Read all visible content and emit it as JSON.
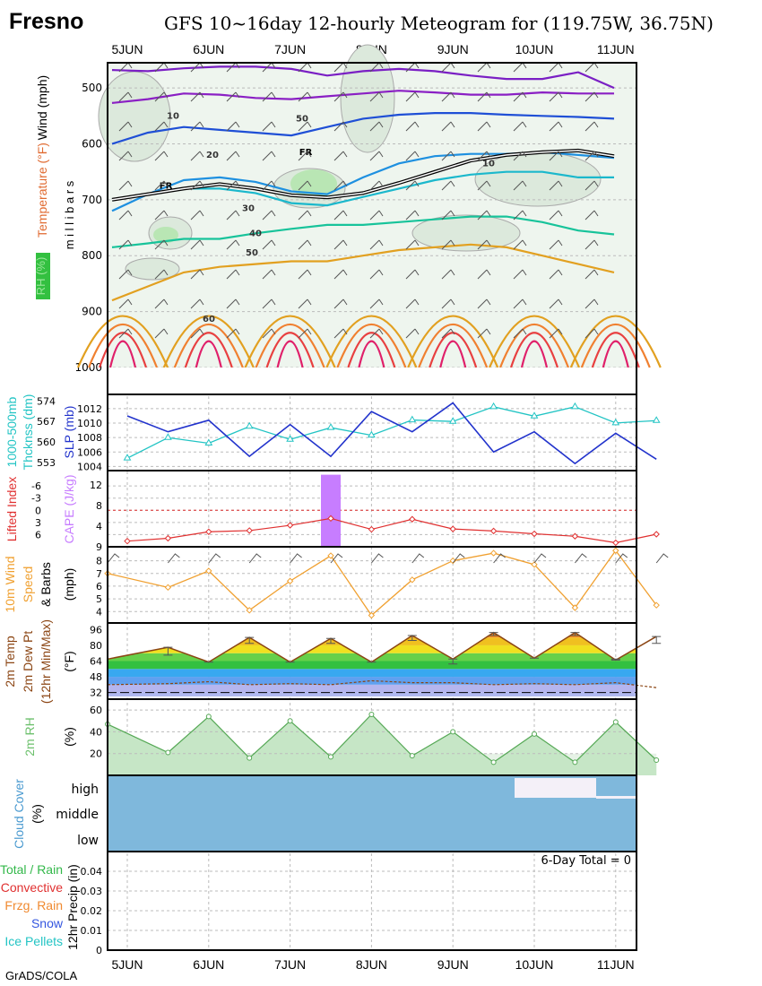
{
  "header": {
    "city": "Fresno",
    "title": "GFS 10~16day 12-hourly Meteogram for (119.75W, 36.75N)"
  },
  "footer": {
    "credit": "GrADS/COLA"
  },
  "dates": [
    "5JUN",
    "6JUN",
    "7JUN",
    "8JUN",
    "9JUN",
    "10JUN",
    "11JUN"
  ],
  "chart_data": [
    {
      "type": "heatmap",
      "panel": "upper-air",
      "ylabel": "Wind (mph)  Temperature (°F)  RH (%)  millibars",
      "y_ticks": [
        500,
        600,
        700,
        800,
        900,
        1000
      ],
      "ylim": [
        455,
        1000
      ],
      "rh_label": "RH (%)",
      "isotherm_labels": [
        {
          "label": "10",
          "x": 1.7,
          "p": 555
        },
        {
          "label": "20",
          "x": 2.8,
          "p": 625
        },
        {
          "label": "FR",
          "x": 1.5,
          "p": 680
        },
        {
          "label": "FR",
          "x": 5.4,
          "p": 620
        },
        {
          "label": "30",
          "x": 3.8,
          "p": 720
        },
        {
          "label": "40",
          "x": 4.0,
          "p": 765
        },
        {
          "label": "60",
          "x": 2.7,
          "p": 918
        },
        {
          "label": "50",
          "x": 5.3,
          "p": 560
        },
        {
          "label": "10",
          "x": 10.5,
          "p": 640
        },
        {
          "label": "50",
          "x": 3.9,
          "p": 800
        }
      ],
      "isotherms": [
        {
          "color": "#7a1fc4",
          "p": [
            468,
            470,
            465,
            462,
            462,
            466,
            478,
            470,
            466,
            470,
            478,
            484,
            484,
            472,
            500
          ]
        },
        {
          "color": "#8a1fc4",
          "p": [
            527,
            520,
            510,
            512,
            518,
            520,
            515,
            510,
            505,
            508,
            512,
            512,
            508,
            510,
            510
          ]
        },
        {
          "color": "#1f4fd6",
          "p": [
            600,
            580,
            570,
            575,
            580,
            585,
            570,
            555,
            548,
            545,
            545,
            548,
            550,
            552,
            555
          ]
        },
        {
          "color": "#1e90e0",
          "p": [
            720,
            690,
            665,
            660,
            668,
            685,
            690,
            660,
            635,
            622,
            618,
            618,
            615,
            620,
            625
          ]
        },
        {
          "color": "#1bb8cc",
          "p": [
            700,
            690,
            680,
            680,
            688,
            706,
            710,
            695,
            680,
            665,
            655,
            650,
            650,
            660,
            660
          ]
        },
        {
          "color": "#17c39a",
          "p": [
            785,
            778,
            770,
            770,
            760,
            752,
            745,
            745,
            740,
            735,
            730,
            730,
            740,
            755,
            762
          ]
        },
        {
          "color": "#e2a020",
          "p": [
            880,
            855,
            830,
            820,
            815,
            810,
            810,
            800,
            790,
            785,
            780,
            785,
            800,
            815,
            830
          ]
        }
      ]
    },
    {
      "type": "line",
      "panel": "slp-thickness",
      "x": [
        0,
        1,
        2,
        3,
        4,
        5,
        6,
        7,
        8,
        9,
        10,
        11,
        12,
        13
      ],
      "series": [
        {
          "name": "SLP (mb)",
          "color": "#2233cc",
          "values": [
            1011.0,
            1008.8,
            1010.4,
            1005.4,
            1009.8,
            1005.4,
            1011.6,
            1008.8,
            1012.8,
            1006.0,
            1008.8,
            1004.4,
            1008.6,
            1005.0
          ]
        },
        {
          "name": "1000-500mb Thcknss (dm)",
          "color": "#22c4c4",
          "values": [
            554.5,
            561.5,
            559.6,
            565.3,
            560.9,
            564.9,
            562.3,
            567.5,
            567.0,
            572.0,
            568.8,
            572.0,
            566.5,
            567.3
          ]
        }
      ],
      "ylabel_left": "1000-500mb Thcknss (dm)",
      "ylabel_right": "SLP (mb)",
      "thk_ticks": [
        553,
        560,
        567,
        574
      ],
      "slp_ticks": [
        1004,
        1006,
        1008,
        1010,
        1012
      ],
      "ylim_slp": [
        1003.8,
        1013.6
      ]
    },
    {
      "type": "bar",
      "panel": "li-cape",
      "x": [
        0,
        1,
        2,
        3,
        4,
        5,
        6,
        7,
        8,
        9,
        10,
        11,
        12,
        13
      ],
      "lifted_index": [
        7.6,
        6.9,
        5.3,
        5.0,
        3.7,
        2.0,
        4.7,
        2.2,
        4.6,
        5.1,
        5.8,
        6.4,
        8.0,
        5.9
      ],
      "cape": [
        0,
        0,
        0,
        0,
        0,
        14,
        0,
        0,
        0,
        0,
        0,
        0,
        0,
        0
      ],
      "ylabel_left": "Lifted Index",
      "ylabel_right": "CAPE (J/kg)",
      "li_ticks": [
        -6,
        -3,
        0,
        3,
        6
      ],
      "cape_ticks": [
        4,
        8,
        12
      ],
      "ylim_li": [
        -9.8,
        9
      ]
    },
    {
      "type": "line",
      "panel": "wind10m",
      "x": [
        0,
        1,
        2,
        3,
        4,
        5,
        6,
        7,
        8,
        9,
        10,
        11,
        12,
        13
      ],
      "values": [
        7.0,
        5.9,
        7.2,
        4.1,
        6.4,
        8.4,
        3.7,
        6.5,
        8.0,
        8.6,
        7.7,
        4.3,
        8.8,
        4.5
      ],
      "ylabel": "10m Wind Speed & Barbs (mph)",
      "y_ticks": [
        4,
        5,
        6,
        7,
        8
      ],
      "ylim": [
        3.1,
        9.1
      ]
    },
    {
      "type": "area",
      "panel": "temperature",
      "x": [
        0,
        1,
        2,
        3,
        4,
        5,
        6,
        7,
        8,
        9,
        10,
        11,
        12,
        13
      ],
      "temp_max": [
        66,
        78,
        63,
        88,
        63,
        87,
        63,
        90,
        66,
        93,
        67,
        93,
        65,
        89
      ],
      "temp_min": [
        66,
        70,
        63,
        82,
        63,
        82,
        63,
        85,
        61,
        90,
        67,
        90,
        66,
        82
      ],
      "dewpoint": [
        40,
        41,
        43,
        40,
        41,
        40,
        44,
        42,
        42,
        40,
        41,
        40,
        42,
        37
      ],
      "ylabel": "2m Temp 2m Dew Pt (12hr Min/Max) (°F)",
      "y_ticks": [
        32,
        48,
        64,
        80,
        96
      ],
      "ylim": [
        28,
        100
      ]
    },
    {
      "type": "area",
      "panel": "rh2m",
      "x": [
        0,
        1,
        2,
        3,
        4,
        5,
        6,
        7,
        8,
        9,
        10,
        11,
        12,
        13
      ],
      "values": [
        47,
        21,
        54,
        16,
        50,
        17,
        56,
        18,
        40,
        12,
        38,
        12,
        49,
        14
      ],
      "ylabel": "2m RH (%)",
      "y_ticks": [
        20,
        40,
        60
      ],
      "ylim": [
        0,
        70
      ]
    },
    {
      "type": "heatmap",
      "panel": "cloud",
      "ylabel": "Cloud Cover (%)",
      "levels": [
        "high",
        "middle",
        "low"
      ],
      "color": "#7fb8dc"
    },
    {
      "type": "bar",
      "panel": "precip",
      "ylabel": "12hr Precip (in)",
      "y_ticks": [
        0,
        0.01,
        0.02,
        0.03,
        0.04
      ],
      "ylim": [
        0,
        0.05
      ],
      "total_label": "6-Day Total = 0",
      "legend": [
        {
          "name": "Total / Rain",
          "color": "#33b84a"
        },
        {
          "name": "Convective",
          "color": "#e03030"
        },
        {
          "name": "Frzg. Rain",
          "color": "#f08a30"
        },
        {
          "name": "Snow",
          "color": "#3355e0"
        },
        {
          "name": "Ice Pellets",
          "color": "#22c4c4"
        }
      ]
    }
  ]
}
